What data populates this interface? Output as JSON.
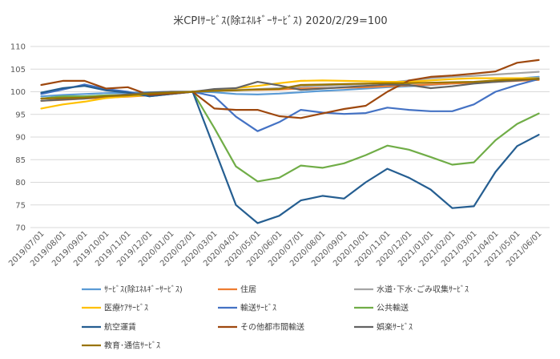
{
  "chart_data": {
    "type": "line",
    "title": "米CPIｻｰﾋﾞｽ(除ｴﾈﾙｷﾞｰｻｰﾋﾞｽ) 2020/2/29=100",
    "ylim": [
      70,
      110
    ],
    "yticks": [
      70,
      75,
      80,
      85,
      90,
      95,
      100,
      105,
      110
    ],
    "grid": "horizontal",
    "legend_position": "bottom",
    "categories": [
      "2019/07/01",
      "2019/08/01",
      "2019/09/01",
      "2019/10/01",
      "2019/11/01",
      "2019/12/01",
      "2020/01/01",
      "2020/02/01",
      "2020/03/01",
      "2020/04/01",
      "2020/05/01",
      "2020/06/01",
      "2020/07/01",
      "2020/08/01",
      "2020/09/01",
      "2020/10/01",
      "2020/11/01",
      "2020/12/01",
      "2021/01/01",
      "2021/02/01",
      "2021/03/01",
      "2021/04/01",
      "2021/05/01",
      "2021/06/01"
    ],
    "series": [
      {
        "name": "ｻｰﾋﾞｽ(除ｴﾈﾙｷﾞｰｻｰﾋﾞｽ)",
        "color": "#5b9bd5",
        "values": [
          99.0,
          99.3,
          99.5,
          99.7,
          99.8,
          99.9,
          100.0,
          100.0,
          99.9,
          99.5,
          99.4,
          99.6,
          99.9,
          100.2,
          100.4,
          100.7,
          101.0,
          101.2,
          101.5,
          101.8,
          102.1,
          102.5,
          102.9,
          103.3
        ]
      },
      {
        "name": "住居",
        "color": "#ed7d31",
        "values": [
          98.0,
          98.2,
          98.5,
          98.7,
          98.9,
          99.2,
          99.5,
          100.0,
          100.3,
          100.4,
          100.4,
          100.5,
          100.7,
          100.8,
          100.9,
          101.0,
          101.2,
          101.4,
          101.6,
          101.8,
          102.0,
          102.2,
          102.4,
          102.6
        ]
      },
      {
        "name": "水道･下水･ごみ収集ｻｰﾋﾞｽ",
        "color": "#a5a5a5",
        "values": [
          98.5,
          98.7,
          99.0,
          99.2,
          99.4,
          99.6,
          99.8,
          100.0,
          100.2,
          100.4,
          100.6,
          100.8,
          101.1,
          101.3,
          101.5,
          101.7,
          102.0,
          102.5,
          103.0,
          103.3,
          103.5,
          103.8,
          104.1,
          104.4
        ]
      },
      {
        "name": "医療ｹｱｻｰﾋﾞｽ",
        "color": "#ffc000",
        "values": [
          96.3,
          97.2,
          97.8,
          98.6,
          99.0,
          99.3,
          99.6,
          100.0,
          100.3,
          100.8,
          101.3,
          101.9,
          102.4,
          102.5,
          102.4,
          102.3,
          102.2,
          102.2,
          102.5,
          102.8,
          103.0,
          103.0,
          103.0,
          103.0
        ]
      },
      {
        "name": "輸送ｻｰﾋﾞｽ",
        "color": "#4472c4",
        "values": [
          99.5,
          100.5,
          101.6,
          100.6,
          100.0,
          99.0,
          99.5,
          100.0,
          99.0,
          94.5,
          91.3,
          93.3,
          96.0,
          95.4,
          95.1,
          95.3,
          96.5,
          96.0,
          95.7,
          95.7,
          97.2,
          100.0,
          101.5,
          102.8
        ]
      },
      {
        "name": "公共輸送",
        "color": "#70ad47",
        "values": [
          98.5,
          99.0,
          99.0,
          99.2,
          99.3,
          99.4,
          99.7,
          100.0,
          92.0,
          83.5,
          80.2,
          81.0,
          83.7,
          83.2,
          84.2,
          86.0,
          88.1,
          87.2,
          85.6,
          83.9,
          84.4,
          89.3,
          92.9,
          95.2
        ]
      },
      {
        "name": "航空運賃",
        "color": "#255e91",
        "values": [
          99.8,
          100.8,
          101.3,
          100.3,
          99.8,
          99.0,
          99.5,
          100.0,
          87.5,
          75.0,
          71.0,
          72.6,
          76.0,
          77.0,
          76.4,
          80.0,
          83.0,
          81.0,
          78.4,
          74.3,
          74.7,
          82.3,
          88.0,
          90.5
        ]
      },
      {
        "name": "その他都市間輸送",
        "color": "#9e480e",
        "values": [
          101.5,
          102.4,
          102.4,
          100.7,
          101.0,
          99.3,
          99.6,
          100.0,
          96.3,
          96.0,
          96.0,
          94.6,
          94.2,
          95.2,
          96.2,
          96.9,
          100.0,
          102.5,
          103.3,
          103.6,
          104.0,
          104.5,
          106.4,
          107.0
        ]
      },
      {
        "name": "娯楽ｻｰﾋﾞｽ",
        "color": "#636363",
        "values": [
          98.0,
          98.3,
          98.5,
          99.0,
          99.4,
          99.8,
          100.0,
          100.0,
          100.6,
          100.8,
          102.2,
          101.4,
          100.4,
          100.7,
          101.0,
          101.3,
          101.6,
          101.5,
          100.8,
          101.2,
          101.8,
          102.2,
          102.5,
          102.9
        ]
      },
      {
        "name": "教育･通信ｻｰﾋﾞｽ",
        "color": "#997300",
        "values": [
          98.5,
          98.6,
          98.7,
          99.0,
          99.2,
          99.6,
          99.8,
          100.0,
          100.2,
          100.3,
          100.5,
          100.6,
          101.5,
          101.6,
          101.7,
          101.8,
          101.9,
          101.9,
          102.0,
          102.1,
          102.2,
          102.5,
          102.7,
          102.8
        ]
      }
    ]
  }
}
